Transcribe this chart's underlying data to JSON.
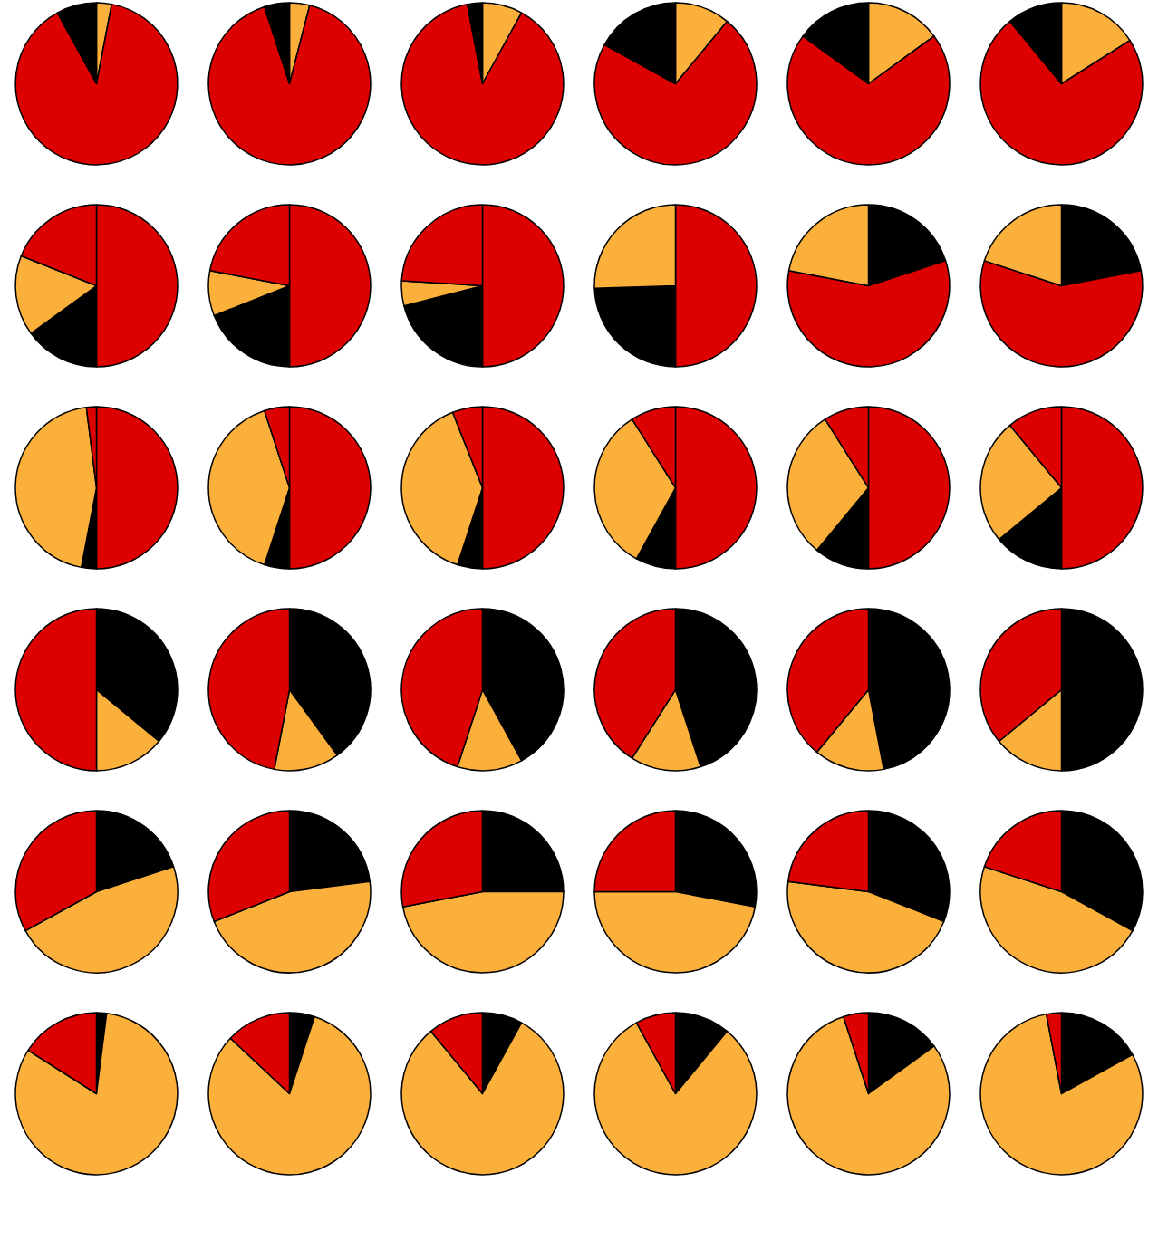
{
  "chart_data": [
    {
      "type": "pie",
      "categories": [
        null,
        null,
        null
      ],
      "values": [
        3,
        89,
        8
      ],
      "colors": [
        "#fbb03b",
        "#dd0000",
        "#000000"
      ]
    },
    {
      "type": "pie",
      "categories": [
        null,
        null,
        null
      ],
      "values": [
        4,
        91,
        5
      ],
      "colors": [
        "#fbb03b",
        "#dd0000",
        "#000000"
      ]
    },
    {
      "type": "pie",
      "categories": [
        null,
        null,
        null
      ],
      "values": [
        8,
        89,
        3
      ],
      "colors": [
        "#fbb03b",
        "#dd0000",
        "#000000"
      ]
    },
    {
      "type": "pie",
      "categories": [
        null,
        null,
        null
      ],
      "values": [
        11,
        72,
        17
      ],
      "colors": [
        "#fbb03b",
        "#dd0000",
        "#000000"
      ]
    },
    {
      "type": "pie",
      "categories": [
        null,
        null,
        null
      ],
      "values": [
        15,
        70,
        15
      ],
      "colors": [
        "#fbb03b",
        "#dd0000",
        "#000000"
      ]
    },
    {
      "type": "pie",
      "categories": [
        null,
        null,
        null
      ],
      "values": [
        16,
        73,
        11
      ],
      "colors": [
        "#fbb03b",
        "#dd0000",
        "#000000"
      ]
    },
    {
      "type": "pie",
      "categories": [
        null,
        null,
        null,
        null
      ],
      "values": [
        50,
        15,
        16,
        19
      ],
      "colors": [
        "#dd0000",
        "#000000",
        "#fbb03b",
        "#dd0000"
      ]
    },
    {
      "type": "pie",
      "categories": [
        null,
        null,
        null,
        null
      ],
      "values": [
        50,
        19,
        9,
        22
      ],
      "colors": [
        "#dd0000",
        "#000000",
        "#fbb03b",
        "#dd0000"
      ]
    },
    {
      "type": "pie",
      "categories": [
        null,
        null,
        null,
        null
      ],
      "values": [
        50,
        21,
        5,
        24
      ],
      "colors": [
        "#dd0000",
        "#000000",
        "#fbb03b",
        "#dd0000"
      ]
    },
    {
      "type": "pie",
      "categories": [
        null,
        null,
        null
      ],
      "values": [
        50,
        24.5,
        25.5
      ],
      "colors": [
        "#dd0000",
        "#000000",
        "#fbb03b"
      ]
    },
    {
      "type": "pie",
      "categories": [
        null,
        null,
        null
      ],
      "values": [
        20,
        58,
        22
      ],
      "colors": [
        "#000000",
        "#dd0000",
        "#fbb03b"
      ]
    },
    {
      "type": "pie",
      "categories": [
        null,
        null,
        null
      ],
      "values": [
        22,
        58,
        20
      ],
      "colors": [
        "#000000",
        "#dd0000",
        "#fbb03b"
      ]
    },
    {
      "type": "pie",
      "categories": [
        null,
        null,
        null,
        null
      ],
      "values": [
        50,
        3,
        45,
        2
      ],
      "colors": [
        "#dd0000",
        "#000000",
        "#fbb03b",
        "#dd0000"
      ]
    },
    {
      "type": "pie",
      "categories": [
        null,
        null,
        null,
        null
      ],
      "values": [
        50,
        5,
        40,
        5
      ],
      "colors": [
        "#dd0000",
        "#000000",
        "#fbb03b",
        "#dd0000"
      ]
    },
    {
      "type": "pie",
      "categories": [
        null,
        null,
        null,
        null
      ],
      "values": [
        50,
        5,
        39,
        6
      ],
      "colors": [
        "#dd0000",
        "#000000",
        "#fbb03b",
        "#dd0000"
      ]
    },
    {
      "type": "pie",
      "categories": [
        null,
        null,
        null,
        null
      ],
      "values": [
        50,
        8,
        33,
        9
      ],
      "colors": [
        "#dd0000",
        "#000000",
        "#fbb03b",
        "#dd0000"
      ]
    },
    {
      "type": "pie",
      "categories": [
        null,
        null,
        null,
        null
      ],
      "values": [
        50,
        11,
        30,
        9
      ],
      "colors": [
        "#dd0000",
        "#000000",
        "#fbb03b",
        "#dd0000"
      ]
    },
    {
      "type": "pie",
      "categories": [
        null,
        null,
        null,
        null
      ],
      "values": [
        50,
        14,
        25,
        11
      ],
      "colors": [
        "#dd0000",
        "#000000",
        "#fbb03b",
        "#dd0000"
      ]
    },
    {
      "type": "pie",
      "categories": [
        null,
        null,
        null
      ],
      "values": [
        36,
        14,
        50
      ],
      "colors": [
        "#000000",
        "#fbb03b",
        "#dd0000"
      ]
    },
    {
      "type": "pie",
      "categories": [
        null,
        null,
        null
      ],
      "values": [
        40,
        13,
        47
      ],
      "colors": [
        "#000000",
        "#fbb03b",
        "#dd0000"
      ]
    },
    {
      "type": "pie",
      "categories": [
        null,
        null,
        null
      ],
      "values": [
        42,
        13,
        45
      ],
      "colors": [
        "#000000",
        "#fbb03b",
        "#dd0000"
      ]
    },
    {
      "type": "pie",
      "categories": [
        null,
        null,
        null
      ],
      "values": [
        45,
        14,
        41
      ],
      "colors": [
        "#000000",
        "#fbb03b",
        "#dd0000"
      ]
    },
    {
      "type": "pie",
      "categories": [
        null,
        null,
        null
      ],
      "values": [
        47,
        14,
        39
      ],
      "colors": [
        "#000000",
        "#fbb03b",
        "#dd0000"
      ]
    },
    {
      "type": "pie",
      "categories": [
        null,
        null,
        null
      ],
      "values": [
        50,
        14,
        36
      ],
      "colors": [
        "#000000",
        "#fbb03b",
        "#dd0000"
      ]
    },
    {
      "type": "pie",
      "categories": [
        null,
        null,
        null
      ],
      "values": [
        20,
        47,
        33
      ],
      "colors": [
        "#000000",
        "#fbb03b",
        "#dd0000"
      ]
    },
    {
      "type": "pie",
      "categories": [
        null,
        null,
        null
      ],
      "values": [
        23,
        46,
        31
      ],
      "colors": [
        "#000000",
        "#fbb03b",
        "#dd0000"
      ]
    },
    {
      "type": "pie",
      "categories": [
        null,
        null,
        null
      ],
      "values": [
        25,
        47,
        28
      ],
      "colors": [
        "#000000",
        "#fbb03b",
        "#dd0000"
      ]
    },
    {
      "type": "pie",
      "categories": [
        null,
        null,
        null
      ],
      "values": [
        28,
        47,
        25
      ],
      "colors": [
        "#000000",
        "#fbb03b",
        "#dd0000"
      ]
    },
    {
      "type": "pie",
      "categories": [
        null,
        null,
        null
      ],
      "values": [
        31,
        46,
        23
      ],
      "colors": [
        "#000000",
        "#fbb03b",
        "#dd0000"
      ]
    },
    {
      "type": "pie",
      "categories": [
        null,
        null,
        null
      ],
      "values": [
        33,
        47,
        20
      ],
      "colors": [
        "#000000",
        "#fbb03b",
        "#dd0000"
      ]
    },
    {
      "type": "pie",
      "categories": [
        null,
        null,
        null
      ],
      "values": [
        2,
        82,
        16
      ],
      "colors": [
        "#000000",
        "#fbb03b",
        "#dd0000"
      ]
    },
    {
      "type": "pie",
      "categories": [
        null,
        null,
        null
      ],
      "values": [
        5,
        82,
        13
      ],
      "colors": [
        "#000000",
        "#fbb03b",
        "#dd0000"
      ]
    },
    {
      "type": "pie",
      "categories": [
        null,
        null,
        null
      ],
      "values": [
        8,
        81,
        11
      ],
      "colors": [
        "#000000",
        "#fbb03b",
        "#dd0000"
      ]
    },
    {
      "type": "pie",
      "categories": [
        null,
        null,
        null
      ],
      "values": [
        11,
        81,
        8
      ],
      "colors": [
        "#000000",
        "#fbb03b",
        "#dd0000"
      ]
    },
    {
      "type": "pie",
      "categories": [
        null,
        null,
        null
      ],
      "values": [
        15,
        80,
        5
      ],
      "colors": [
        "#000000",
        "#fbb03b",
        "#dd0000"
      ]
    },
    {
      "type": "pie",
      "categories": [
        null,
        null,
        null
      ],
      "values": [
        17,
        80,
        3
      ],
      "colors": [
        "#000000",
        "#fbb03b",
        "#dd0000"
      ]
    }
  ]
}
